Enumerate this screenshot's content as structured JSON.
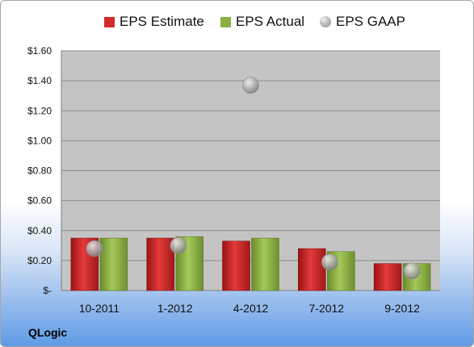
{
  "legend": {
    "estimate": "EPS Estimate",
    "actual": "EPS Actual",
    "gaap": "EPS GAAP"
  },
  "company": "QLogic",
  "colors": {
    "estimate": "#d22a2a",
    "actual": "#8cb043",
    "gaap": "#a6a6a6",
    "plot_bg": "#c4c4c4"
  },
  "chart_data": {
    "type": "bar",
    "categories": [
      "10-2011",
      "1-2012",
      "4-2012",
      "7-2012",
      "9-2012"
    ],
    "series": [
      {
        "name": "EPS Estimate",
        "type": "bar",
        "values": [
          0.35,
          0.35,
          0.33,
          0.28,
          0.18
        ]
      },
      {
        "name": "EPS Actual",
        "type": "bar",
        "values": [
          0.35,
          0.36,
          0.35,
          0.26,
          0.18
        ]
      },
      {
        "name": "EPS GAAP",
        "type": "scatter",
        "values": [
          0.28,
          0.3,
          1.37,
          0.19,
          0.13
        ]
      }
    ],
    "y_ticks": [
      "$-",
      "$0.20",
      "$0.40",
      "$0.60",
      "$0.80",
      "$1.00",
      "$1.20",
      "$1.40",
      "$1.60"
    ],
    "ylim": [
      0,
      1.6
    ],
    "grid": true,
    "legend_position": "top"
  }
}
